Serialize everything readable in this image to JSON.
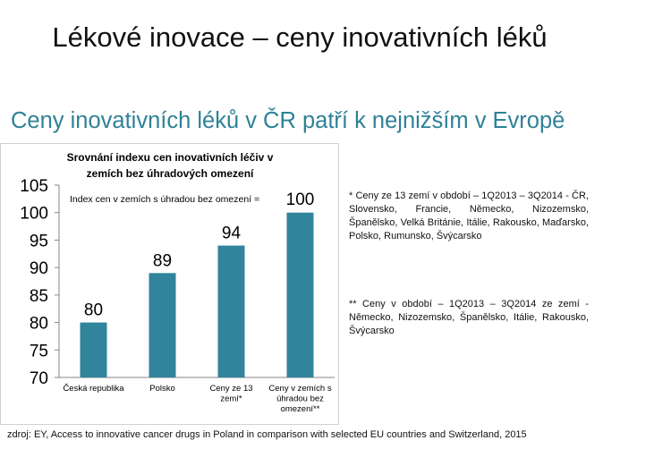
{
  "slide": {
    "title": "Lékové inovace – ceny inovativních léků",
    "subtitle": "Ceny inovativních léků v ČR patří k nejnižším v Evropě",
    "note1": "* Ceny ze 13 zemí v období – 1Q2013 – 3Q2014 - ČR, Slovensko, Francie, Německo, Nizozemsko, Španělsko, Velká Británie, Itálie, Rakousko, Maďarsko, Polsko, Rumunsko, Švýcarsko",
    "note2": "** Ceny v období – 1Q2013 – 3Q2014 ze zemí - Německo, Nizozemsko, Španělsko, Itálie, Rakousko, Švýcarsko",
    "source": "zdroj: EY, Access to innovative cancer drugs in Poland in comparison with selected EU countries and Switzerland, 2015"
  },
  "chart_data": {
    "type": "bar",
    "title_lines": [
      "Srovnání indexu cen inovativních léčiv v",
      "zemích bez úhradových omezení"
    ],
    "annotation": "Index  cen v zemích s úhradou bez omezení =",
    "categories": [
      [
        "Česká republika"
      ],
      [
        "Polsko"
      ],
      [
        "Ceny ze 13",
        "zemí*"
      ],
      [
        "Ceny v zemích s",
        "úhradou bez",
        "omezení**"
      ]
    ],
    "values": [
      80,
      89,
      94,
      100
    ],
    "ylim": [
      70,
      105
    ],
    "yticks": [
      70,
      75,
      80,
      85,
      90,
      95,
      100,
      105
    ],
    "grid": false,
    "bar_color": "#31849b"
  }
}
